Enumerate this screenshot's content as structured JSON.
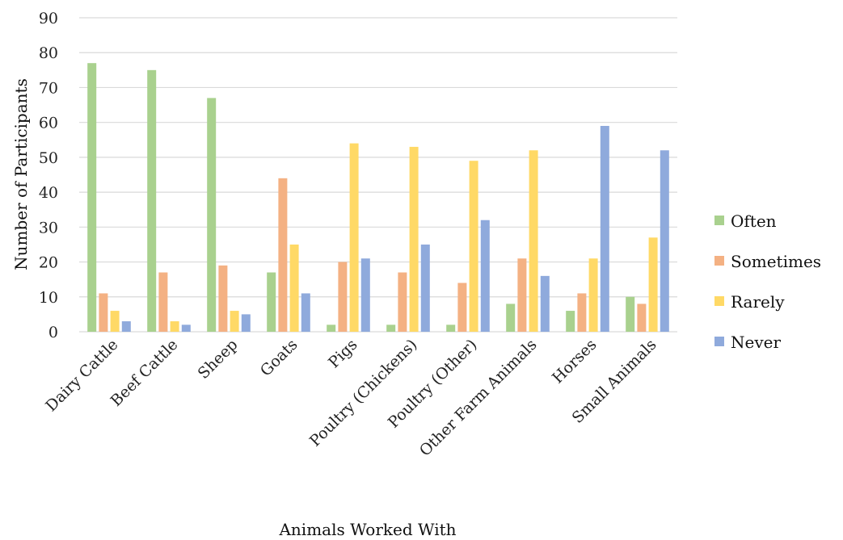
{
  "chart_data": {
    "type": "bar",
    "title": "",
    "xlabel": "Animals Worked With",
    "ylabel": "Number of Participants",
    "ylim": [
      0,
      90
    ],
    "yticks": [
      0,
      10,
      20,
      30,
      40,
      50,
      60,
      70,
      80,
      90
    ],
    "grid": true,
    "legend_position": "right",
    "categories": [
      "Dairy Cattle",
      "Beef Cattle",
      "Sheep",
      "Goats",
      "Pigs",
      "Poultry (Chickens)",
      "Poultry (Other)",
      "Other Farm Animals",
      "Horses",
      "Small Animals"
    ],
    "series": [
      {
        "name": "Often",
        "color": "#a9d18e",
        "values": [
          77,
          75,
          67,
          17,
          2,
          2,
          2,
          8,
          6,
          10
        ]
      },
      {
        "name": "Sometimes",
        "color": "#f4b183",
        "values": [
          11,
          17,
          19,
          44,
          20,
          17,
          14,
          21,
          11,
          8
        ]
      },
      {
        "name": "Rarely",
        "color": "#ffd966",
        "values": [
          6,
          3,
          6,
          25,
          54,
          53,
          49,
          52,
          21,
          27
        ]
      },
      {
        "name": "Never",
        "color": "#8faadc",
        "values": [
          3,
          2,
          5,
          11,
          21,
          25,
          32,
          16,
          59,
          52
        ]
      }
    ]
  }
}
